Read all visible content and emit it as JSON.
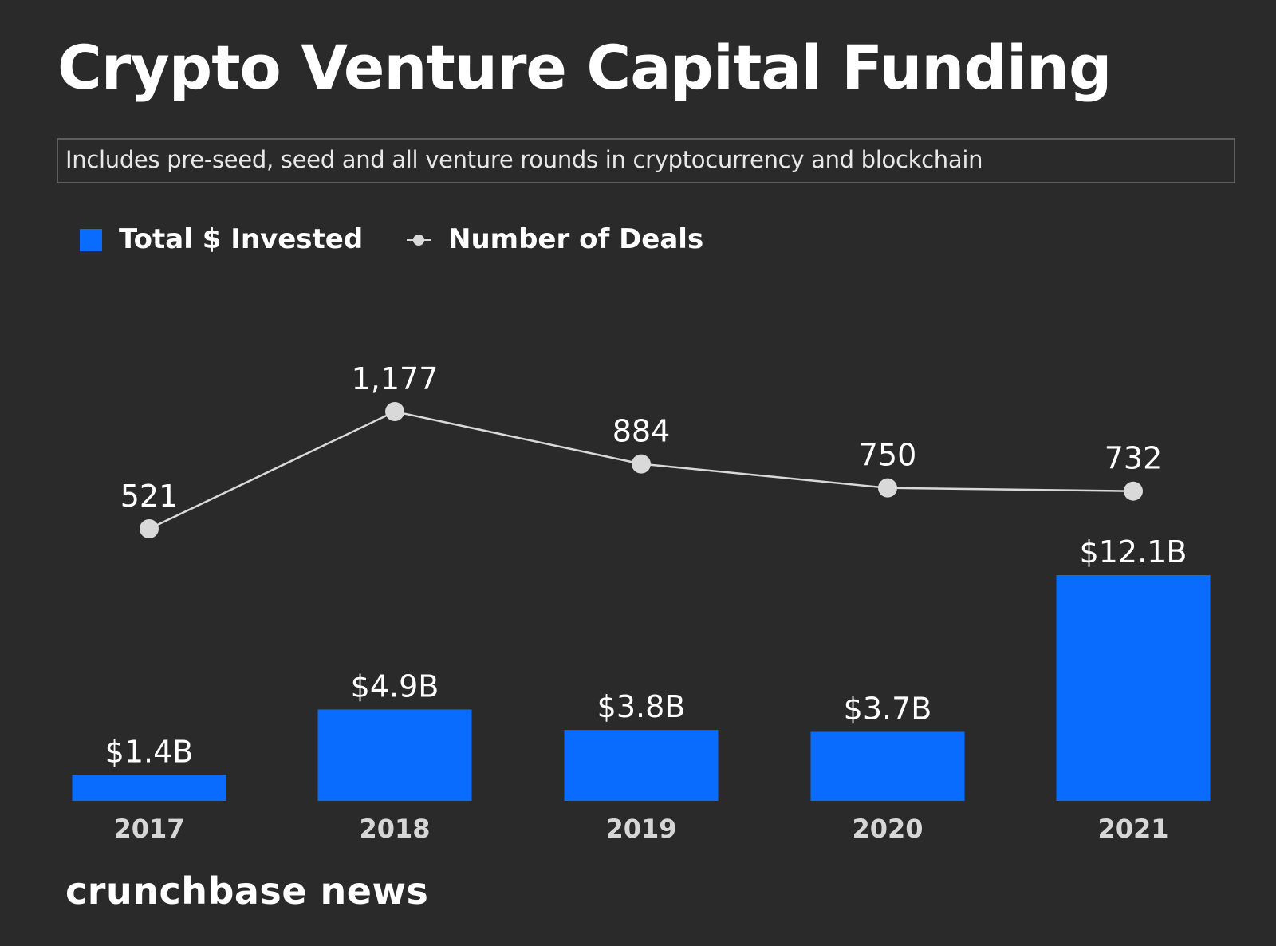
{
  "title": "Crypto Venture Capital Funding",
  "subtitle": "Includes pre-seed, seed and all venture rounds in cryptocurrency and blockchain",
  "brand": "crunchbase news",
  "colors": {
    "background": "#2a2a2a",
    "bar": "#0a6cff",
    "line": "#d9d9d9",
    "text": "#ffffff"
  },
  "chart_data": {
    "type": "bar",
    "categories": [
      "2017",
      "2018",
      "2019",
      "2020",
      "2021"
    ],
    "series": [
      {
        "name": "Total $ Invested",
        "type": "bar",
        "unit": "$B",
        "values": [
          1.4,
          4.9,
          3.8,
          3.7,
          12.1
        ],
        "labels": [
          "$1.4B",
          "$4.9B",
          "$3.8B",
          "$3.7B",
          "$12.1B"
        ]
      },
      {
        "name": "Number of Deals",
        "type": "line",
        "values": [
          521,
          1177,
          884,
          750,
          732
        ],
        "labels": [
          "521",
          "1,177",
          "884",
          "750",
          "732"
        ]
      }
    ],
    "legend": "top-left",
    "grid": false,
    "ylim_bars": [
      0,
      12.1
    ],
    "ylim_line": [
      521,
      1177
    ]
  }
}
